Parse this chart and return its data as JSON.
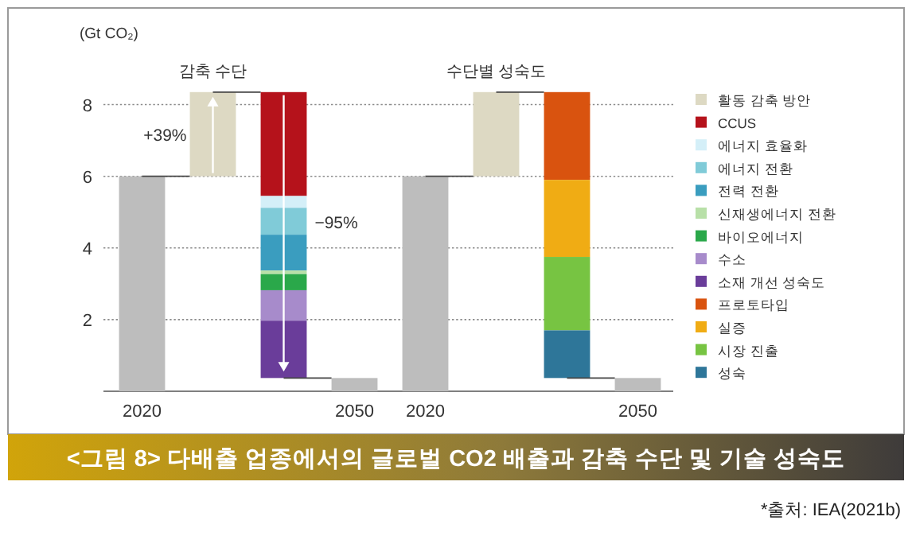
{
  "chart_data": [
    {
      "type": "bar",
      "title": "감축 수단",
      "ylabel": "(Gt CO₂)",
      "categories": [
        "2020",
        null,
        null,
        "2050"
      ],
      "ylim": [
        0,
        8.35
      ],
      "yticks": [
        2,
        4,
        6,
        8
      ],
      "grid": "y",
      "legend": "right",
      "annotations": [
        "+39%",
        "−95%",
        "<그림 8> 다배출 업종에서의 글로벌 CO2 배출과 감축 수단 및 기술 성숙도",
        "*출처: IEA(2021b)"
      ],
      "series": [
        {
          "color": "#bdbdbd",
          "values": [
            6,
            null,
            null,
            0.37
          ],
          "base": [
            0,
            null,
            null,
            0
          ]
        },
        {
          "name": "활동 감축 방안",
          "color": "#ddd9c3",
          "values": [
            null,
            2.35,
            null,
            null
          ],
          "base": [
            null,
            6,
            null,
            null
          ]
        },
        {
          "name": "CCUS",
          "color": "#b5121b",
          "values": [
            null,
            null,
            2.9,
            null
          ],
          "base": [
            null,
            null,
            5.45,
            null
          ]
        },
        {
          "name": "에너지 효율화",
          "color": "#d4eff8",
          "values": [
            null,
            null,
            0.33,
            null
          ],
          "base": [
            null,
            null,
            5.12,
            null
          ]
        },
        {
          "name": "에너지 전환",
          "color": "#80cbd8",
          "values": [
            null,
            null,
            0.75,
            null
          ],
          "base": [
            null,
            null,
            4.37,
            null
          ]
        },
        {
          "name": "전력 전환",
          "color": "#3a9dbf",
          "values": [
            null,
            null,
            1.0,
            null
          ],
          "base": [
            null,
            null,
            3.37,
            null
          ]
        },
        {
          "name": "신재생에너지 전환",
          "color": "#b8e0a8",
          "values": [
            null,
            null,
            0.1,
            null
          ],
          "base": [
            null,
            null,
            3.27,
            null
          ]
        },
        {
          "name": "바이오에너지",
          "color": "#2aa84a",
          "values": [
            null,
            null,
            0.45,
            null
          ],
          "base": [
            null,
            null,
            2.82,
            null
          ]
        },
        {
          "name": "수소",
          "color": "#a78bcb",
          "values": [
            null,
            null,
            0.85,
            null
          ],
          "base": [
            null,
            null,
            1.97,
            null
          ]
        },
        {
          "name": "소재 개선 성숙도",
          "color": "#6a3d9a",
          "values": [
            null,
            null,
            1.6,
            null
          ],
          "base": [
            null,
            null,
            0.37,
            null
          ]
        }
      ]
    },
    {
      "type": "bar",
      "title": "수단별 성숙도",
      "categories": [
        "2020",
        null,
        null,
        "2050"
      ],
      "ylim": [
        0,
        8.35
      ],
      "yticks": [
        2,
        4,
        6,
        8
      ],
      "tick_labels": "x",
      "grid": "y",
      "legend": "right",
      "series": [
        {
          "color": "#bdbdbd",
          "values": [
            6,
            null,
            null,
            0.37
          ],
          "base": [
            0,
            null,
            null,
            0
          ]
        },
        {
          "color": "#ddd9c3",
          "values": [
            null,
            2.35,
            null,
            null
          ],
          "base": [
            null,
            6,
            null,
            null
          ]
        },
        {
          "name": "프로토타입",
          "color": "#d9530f",
          "values": [
            null,
            null,
            2.45,
            null
          ],
          "base": [
            null,
            null,
            5.9,
            null
          ]
        },
        {
          "name": "실증",
          "color": "#f0ac14",
          "values": [
            null,
            null,
            2.15,
            null
          ],
          "base": [
            null,
            null,
            3.75,
            null
          ]
        },
        {
          "name": "시장 진출",
          "color": "#77c442",
          "values": [
            null,
            null,
            2.05,
            null
          ],
          "base": [
            null,
            null,
            1.7,
            null
          ]
        },
        {
          "name": "성숙",
          "color": "#2e7699",
          "values": [
            null,
            null,
            1.33,
            null
          ],
          "base": [
            null,
            null,
            0.37,
            null
          ]
        }
      ]
    }
  ]
}
